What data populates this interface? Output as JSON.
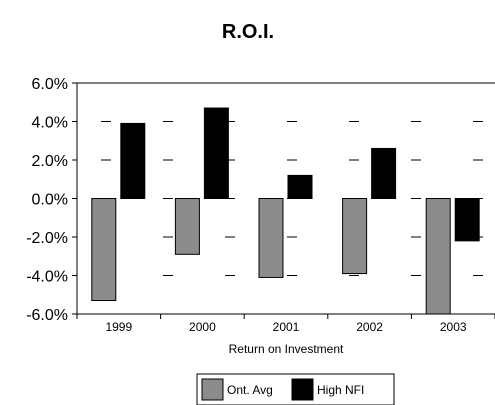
{
  "chart_data": {
    "type": "bar",
    "title": "R.O.I.",
    "xlabel": "Return on Investment",
    "ylabel": "",
    "categories": [
      "1999",
      "2000",
      "2001",
      "2002",
      "2003"
    ],
    "series": [
      {
        "name": "Ont. Avg",
        "color": "#8c8c8c",
        "values": [
          -5.3,
          -2.9,
          -4.1,
          -3.9,
          -6.0
        ]
      },
      {
        "name": "High NFI",
        "color": "#000000",
        "values": [
          3.9,
          4.7,
          1.2,
          2.6,
          -2.2
        ]
      }
    ],
    "ylim": [
      -6.0,
      6.0
    ],
    "yticks": [
      6.0,
      4.0,
      2.0,
      0.0,
      -2.0,
      -4.0,
      -6.0
    ],
    "ytick_labels": [
      "6.0%",
      "4.0%",
      "2.0%",
      "0.0%",
      "-2.0%",
      "-4.0%",
      "-6.0%"
    ],
    "grid": "dashed-horizontal",
    "legend": "bottom"
  }
}
